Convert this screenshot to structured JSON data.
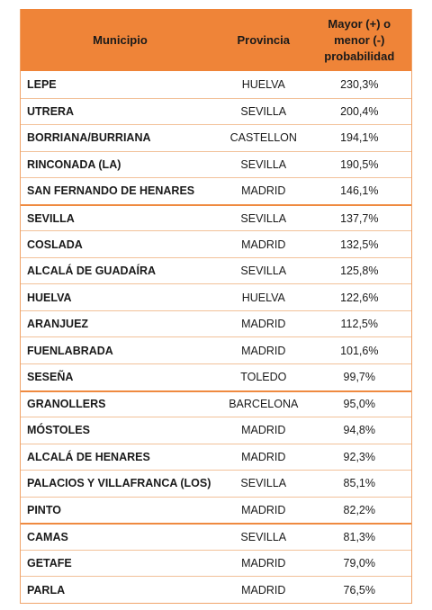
{
  "header": {
    "municipio": "Municipio",
    "provincia": "Provincia",
    "probabilidad_line1": "Mayor (+) o",
    "probabilidad_line2": "menor (-)",
    "probabilidad_line3": "probabilidad"
  },
  "rows": [
    {
      "municipio": "LEPE",
      "provincia": "HUELVA",
      "probabilidad": "230,3%"
    },
    {
      "municipio": "UTRERA",
      "provincia": "SEVILLA",
      "probabilidad": "200,4%"
    },
    {
      "municipio": "BORRIANA/BURRIANA",
      "provincia": "CASTELLON",
      "probabilidad": "194,1%"
    },
    {
      "municipio": "RINCONADA (LA)",
      "provincia": "SEVILLA",
      "probabilidad": "190,5%"
    },
    {
      "municipio": "SAN FERNANDO DE HENARES",
      "provincia": "MADRID",
      "probabilidad": "146,1%"
    },
    {
      "municipio": "SEVILLA",
      "provincia": "SEVILLA",
      "probabilidad": "137,7%"
    },
    {
      "municipio": "COSLADA",
      "provincia": "MADRID",
      "probabilidad": "132,5%"
    },
    {
      "municipio": "ALCALÁ DE GUADAÍRA",
      "provincia": "SEVILLA",
      "probabilidad": "125,8%"
    },
    {
      "municipio": "HUELVA",
      "provincia": "HUELVA",
      "probabilidad": "122,6%"
    },
    {
      "municipio": "ARANJUEZ",
      "provincia": "MADRID",
      "probabilidad": "112,5%"
    },
    {
      "municipio": "FUENLABRADA",
      "provincia": "MADRID",
      "probabilidad": "101,6%"
    },
    {
      "municipio": "SESEÑA",
      "provincia": "TOLEDO",
      "probabilidad": "99,7%"
    },
    {
      "municipio": "GRANOLLERS",
      "provincia": "BARCELONA",
      "probabilidad": "95,0%"
    },
    {
      "municipio": "MÓSTOLES",
      "provincia": "MADRID",
      "probabilidad": "94,8%"
    },
    {
      "municipio": "ALCALÁ DE HENARES",
      "provincia": "MADRID",
      "probabilidad": "92,3%"
    },
    {
      "municipio": "PALACIOS Y VILLAFRANCA (LOS)",
      "provincia": "SEVILLA",
      "probabilidad": "85,1%"
    },
    {
      "municipio": "PINTO",
      "provincia": "MADRID",
      "probabilidad": "82,2%"
    },
    {
      "municipio": "CAMAS",
      "provincia": "SEVILLA",
      "probabilidad": "81,3%"
    },
    {
      "municipio": "GETAFE",
      "provincia": "MADRID",
      "probabilidad": "79,0%"
    },
    {
      "municipio": "PARLA",
      "provincia": "MADRID",
      "probabilidad": "76,5%"
    }
  ],
  "colors": {
    "header_bg": "#ef8438",
    "divider": "#ef8a40"
  }
}
